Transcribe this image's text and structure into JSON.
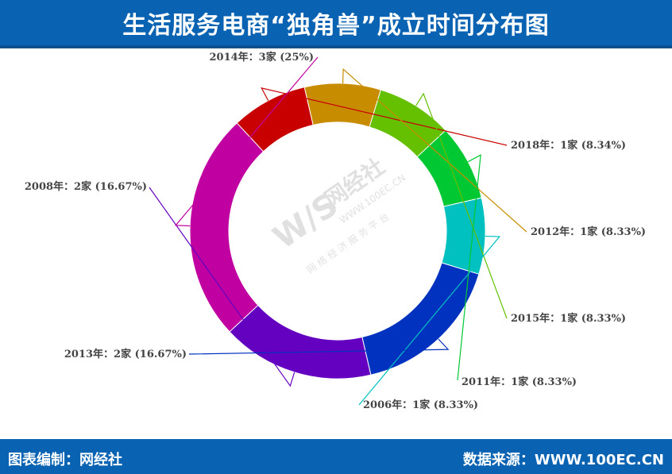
{
  "header": {
    "title": "生活服务电商“独角兽”成立时间分布图"
  },
  "footer": {
    "left": "图表编制：网经社",
    "right": "数据来源：WWW.100EC.CN"
  },
  "watermark": {
    "logo": "W/S",
    "brand": "网经社",
    "url": "WWW.100EC.CN",
    "tagline": "网 络 经 济 服 务 平 台"
  },
  "chart_data": {
    "type": "pie",
    "donut": true,
    "title": "生活服务电商“独角兽”成立时间分布图",
    "slices": [
      {
        "label": "2018年：1家 (8.34%)",
        "year": "2018",
        "count": 1,
        "percent": 8.34,
        "color": "#c80000"
      },
      {
        "label": "2012年：1家 (8.33%)",
        "year": "2012",
        "count": 1,
        "percent": 8.33,
        "color": "#c88c00"
      },
      {
        "label": "2015年：1家 (8.33%)",
        "year": "2015",
        "count": 1,
        "percent": 8.33,
        "color": "#64c000"
      },
      {
        "label": "2011年：1家 (8.33%)",
        "year": "2011",
        "count": 1,
        "percent": 8.33,
        "color": "#00c832"
      },
      {
        "label": "2006年：1家 (8.33%)",
        "year": "2006",
        "count": 1,
        "percent": 8.33,
        "color": "#00c0c0"
      },
      {
        "label": "2013年：2家 (16.67%)",
        "year": "2013",
        "count": 2,
        "percent": 16.67,
        "color": "#0032c0"
      },
      {
        "label": "2008年：2家 (16.67%)",
        "year": "2008",
        "count": 2,
        "percent": 16.67,
        "color": "#6400c0"
      },
      {
        "label": "2014年：3家 (25%)",
        "year": "2014",
        "count": 3,
        "percent": 25,
        "color": "#c000a0"
      }
    ]
  }
}
